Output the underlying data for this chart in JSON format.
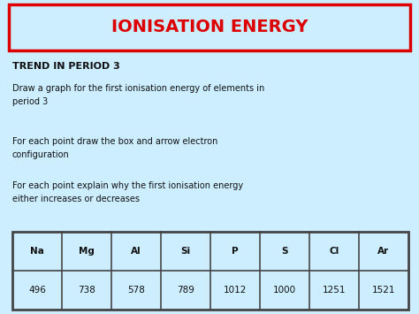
{
  "title": "IONISATION ENERGY",
  "title_color": "#dd0000",
  "title_box_edge_color": "#dd0000",
  "background_color": "#cceeff",
  "subtitle": "TREND IN PERIOD 3",
  "para1": "Draw a graph for the first ionisation energy of elements in\nperiod 3",
  "para2": "For each point draw the box and arrow electron\nconfiguration",
  "para3": "For each point explain why the first ionisation energy\neither increases or decreases",
  "table_headers": [
    "Na",
    "Mg",
    "Al",
    "Si",
    "P",
    "S",
    "Cl",
    "Ar"
  ],
  "table_values": [
    "496",
    "738",
    "578",
    "789",
    "1012",
    "1000",
    "1251",
    "1521"
  ],
  "text_color": "#111111",
  "subtitle_color": "#111111",
  "table_border_color": "#444444",
  "title_fontsize": 14,
  "subtitle_fontsize": 8,
  "body_fontsize": 7,
  "table_fontsize": 7.5
}
